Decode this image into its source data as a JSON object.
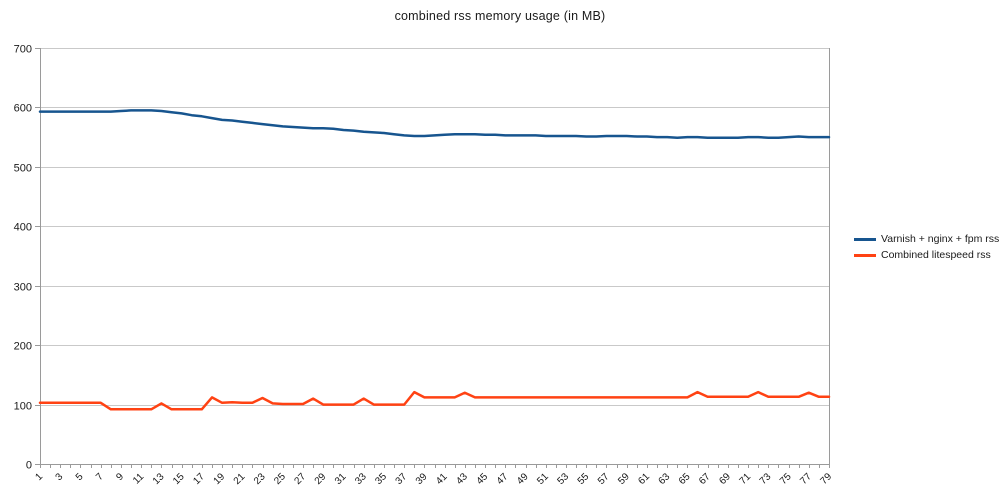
{
  "chart_data": {
    "type": "line",
    "title": "combined rss memory usage (in MB)",
    "xlabel": "",
    "ylabel": "",
    "ylim": [
      0,
      700
    ],
    "grid": true,
    "legend_position": "right",
    "y_ticks": [
      0,
      100,
      200,
      300,
      400,
      500,
      600,
      700
    ],
    "x_tick_labels": [
      "1",
      "3",
      "5",
      "7",
      "9",
      "11",
      "13",
      "15",
      "17",
      "19",
      "21",
      "23",
      "25",
      "27",
      "29",
      "31",
      "33",
      "35",
      "37",
      "39",
      "41",
      "43",
      "45",
      "47",
      "49",
      "51",
      "53",
      "55",
      "57",
      "59",
      "61",
      "63",
      "65",
      "67",
      "69",
      "71",
      "73",
      "75",
      "77",
      "79"
    ],
    "colors": {
      "grid": "#c9c9c9",
      "axis": "#9a9a9a",
      "text": "#1a1a1a"
    },
    "series": [
      {
        "name": "Varnish + nginx + fpm rss",
        "color": "#17558f",
        "values": [
          593,
          593,
          593,
          593,
          593,
          593,
          593,
          593,
          594,
          595,
          595,
          595,
          594,
          592,
          590,
          587,
          585,
          582,
          579,
          578,
          576,
          574,
          572,
          570,
          568,
          567,
          566,
          565,
          565,
          564,
          562,
          561,
          559,
          558,
          557,
          555,
          553,
          552,
          552,
          553,
          554,
          555,
          555,
          555,
          554,
          554,
          553,
          553,
          553,
          553,
          552,
          552,
          552,
          552,
          551,
          551,
          552,
          552,
          552,
          551,
          551,
          550,
          550,
          549,
          550,
          550,
          549,
          549,
          549,
          549,
          550,
          550,
          549,
          549,
          550,
          551,
          550,
          550,
          550
        ]
      },
      {
        "name": "Combined litespeed rss",
        "color": "#ff4213",
        "values": [
          103,
          103,
          103,
          103,
          103,
          103,
          103,
          92,
          92,
          92,
          92,
          92,
          102,
          92,
          92,
          92,
          92,
          112,
          103,
          104,
          103,
          103,
          111,
          102,
          101,
          101,
          101,
          110,
          100,
          100,
          100,
          100,
          110,
          100,
          100,
          100,
          100,
          121,
          112,
          112,
          112,
          112,
          120,
          112,
          112,
          112,
          112,
          112,
          112,
          112,
          112,
          112,
          112,
          112,
          112,
          112,
          112,
          112,
          112,
          112,
          112,
          112,
          112,
          112,
          112,
          121,
          113,
          113,
          113,
          113,
          113,
          121,
          113,
          113,
          113,
          113,
          120,
          113,
          113
        ]
      }
    ]
  }
}
